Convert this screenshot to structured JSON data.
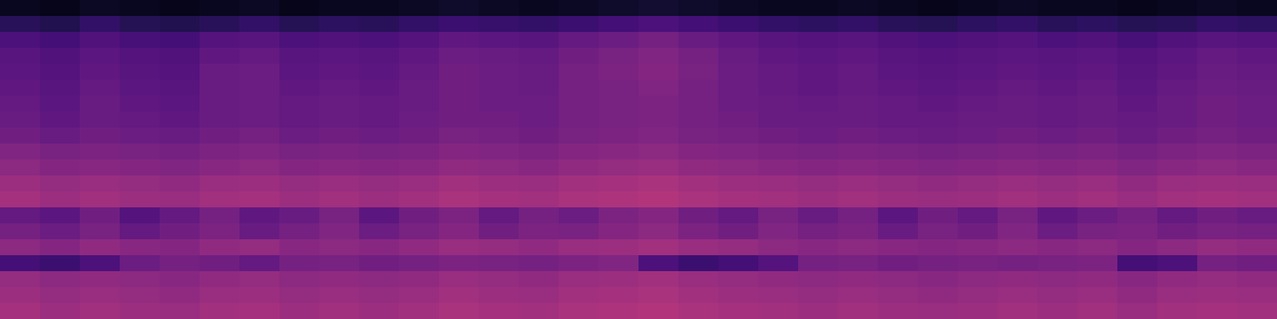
{
  "chart_data": {
    "type": "heatmap",
    "tick_labels": false,
    "zlim": [
      0,
      100
    ],
    "cells": [
      [
        6,
        5,
        7,
        6,
        5,
        6,
        7,
        5,
        6,
        6,
        7,
        8,
        7,
        6,
        7,
        8,
        9,
        8,
        7,
        6,
        6,
        7,
        6,
        5,
        6,
        7,
        6,
        6,
        5,
        6,
        7,
        6
      ],
      [
        16,
        14,
        18,
        15,
        14,
        16,
        18,
        15,
        17,
        16,
        18,
        20,
        19,
        18,
        20,
        22,
        24,
        22,
        20,
        18,
        17,
        18,
        16,
        15,
        17,
        18,
        16,
        17,
        15,
        16,
        18,
        17
      ],
      [
        24,
        22,
        25,
        23,
        22,
        26,
        27,
        24,
        25,
        24,
        26,
        29,
        28,
        27,
        30,
        32,
        34,
        31,
        29,
        27,
        26,
        27,
        25,
        24,
        25,
        26,
        24,
        25,
        23,
        25,
        27,
        26
      ],
      [
        27,
        25,
        28,
        26,
        25,
        29,
        30,
        27,
        28,
        27,
        29,
        32,
        31,
        30,
        33,
        35,
        37,
        34,
        31,
        29,
        28,
        29,
        27,
        26,
        27,
        28,
        27,
        28,
        26,
        28,
        30,
        29
      ],
      [
        28,
        26,
        29,
        27,
        26,
        31,
        32,
        28,
        29,
        28,
        30,
        33,
        32,
        31,
        34,
        36,
        38,
        35,
        32,
        30,
        29,
        30,
        28,
        27,
        28,
        29,
        28,
        29,
        27,
        29,
        31,
        30
      ],
      [
        29,
        27,
        30,
        28,
        27,
        31,
        32,
        29,
        30,
        29,
        31,
        33,
        32,
        31,
        34,
        35,
        37,
        34,
        32,
        30,
        29,
        30,
        29,
        28,
        29,
        30,
        29,
        30,
        28,
        30,
        32,
        31
      ],
      [
        30,
        28,
        31,
        29,
        28,
        31,
        32,
        30,
        31,
        30,
        31,
        33,
        32,
        32,
        34,
        35,
        36,
        34,
        32,
        31,
        30,
        31,
        30,
        29,
        30,
        31,
        30,
        31,
        29,
        31,
        33,
        32
      ],
      [
        31,
        29,
        31,
        30,
        29,
        31,
        32,
        30,
        31,
        30,
        32,
        33,
        33,
        32,
        34,
        35,
        36,
        34,
        33,
        31,
        31,
        31,
        30,
        30,
        31,
        31,
        30,
        31,
        30,
        31,
        33,
        32
      ],
      [
        33,
        31,
        33,
        32,
        31,
        33,
        34,
        32,
        33,
        32,
        33,
        35,
        34,
        33,
        35,
        36,
        37,
        35,
        34,
        33,
        32,
        33,
        32,
        31,
        32,
        33,
        32,
        33,
        31,
        33,
        34,
        33
      ],
      [
        37,
        35,
        36,
        35,
        34,
        36,
        37,
        35,
        36,
        35,
        36,
        38,
        37,
        36,
        38,
        39,
        40,
        38,
        37,
        36,
        35,
        36,
        35,
        34,
        35,
        36,
        35,
        36,
        34,
        36,
        37,
        36
      ],
      [
        40,
        38,
        39,
        38,
        37,
        39,
        40,
        38,
        39,
        38,
        39,
        41,
        40,
        39,
        41,
        42,
        43,
        41,
        40,
        39,
        38,
        39,
        38,
        37,
        38,
        39,
        38,
        39,
        37,
        39,
        40,
        39
      ],
      [
        44,
        42,
        43,
        42,
        41,
        43,
        44,
        42,
        43,
        42,
        43,
        45,
        44,
        43,
        45,
        46,
        47,
        45,
        44,
        43,
        42,
        43,
        42,
        41,
        42,
        43,
        42,
        43,
        41,
        43,
        44,
        43
      ],
      [
        46,
        44,
        45,
        44,
        43,
        45,
        46,
        44,
        45,
        44,
        45,
        47,
        46,
        45,
        47,
        48,
        49,
        47,
        46,
        45,
        44,
        45,
        44,
        43,
        44,
        45,
        44,
        45,
        43,
        45,
        46,
        45
      ],
      [
        30,
        28,
        33,
        26,
        30,
        34,
        29,
        31,
        35,
        28,
        33,
        36,
        30,
        34,
        32,
        36,
        38,
        33,
        30,
        35,
        31,
        34,
        28,
        33,
        30,
        35,
        29,
        32,
        34,
        30,
        33,
        31
      ],
      [
        34,
        32,
        35,
        30,
        33,
        36,
        31,
        34,
        37,
        32,
        35,
        38,
        33,
        36,
        35,
        38,
        40,
        36,
        33,
        37,
        34,
        36,
        31,
        35,
        33,
        37,
        32,
        35,
        36,
        33,
        35,
        34
      ],
      [
        40,
        38,
        41,
        39,
        38,
        41,
        42,
        39,
        40,
        39,
        41,
        43,
        42,
        41,
        43,
        44,
        45,
        43,
        42,
        40,
        39,
        40,
        39,
        38,
        39,
        40,
        39,
        40,
        38,
        40,
        42,
        41
      ],
      [
        22,
        20,
        24,
        32,
        34,
        33,
        30,
        34,
        35,
        33,
        34,
        36,
        35,
        34,
        36,
        37,
        24,
        20,
        22,
        26,
        34,
        35,
        33,
        34,
        35,
        34,
        35,
        36,
        22,
        24,
        34,
        33
      ],
      [
        42,
        40,
        41,
        40,
        39,
        41,
        42,
        40,
        41,
        40,
        41,
        43,
        42,
        41,
        43,
        44,
        45,
        43,
        42,
        41,
        40,
        41,
        40,
        39,
        40,
        41,
        40,
        41,
        39,
        41,
        42,
        41
      ],
      [
        44,
        42,
        43,
        42,
        41,
        43,
        44,
        42,
        43,
        42,
        43,
        45,
        44,
        43,
        45,
        46,
        47,
        45,
        44,
        43,
        42,
        43,
        42,
        41,
        42,
        43,
        42,
        43,
        41,
        43,
        44,
        43
      ],
      [
        46,
        44,
        45,
        44,
        43,
        45,
        46,
        44,
        45,
        44,
        45,
        47,
        46,
        45,
        47,
        48,
        49,
        47,
        46,
        45,
        44,
        45,
        44,
        43,
        44,
        45,
        44,
        45,
        43,
        45,
        46,
        45
      ]
    ]
  }
}
